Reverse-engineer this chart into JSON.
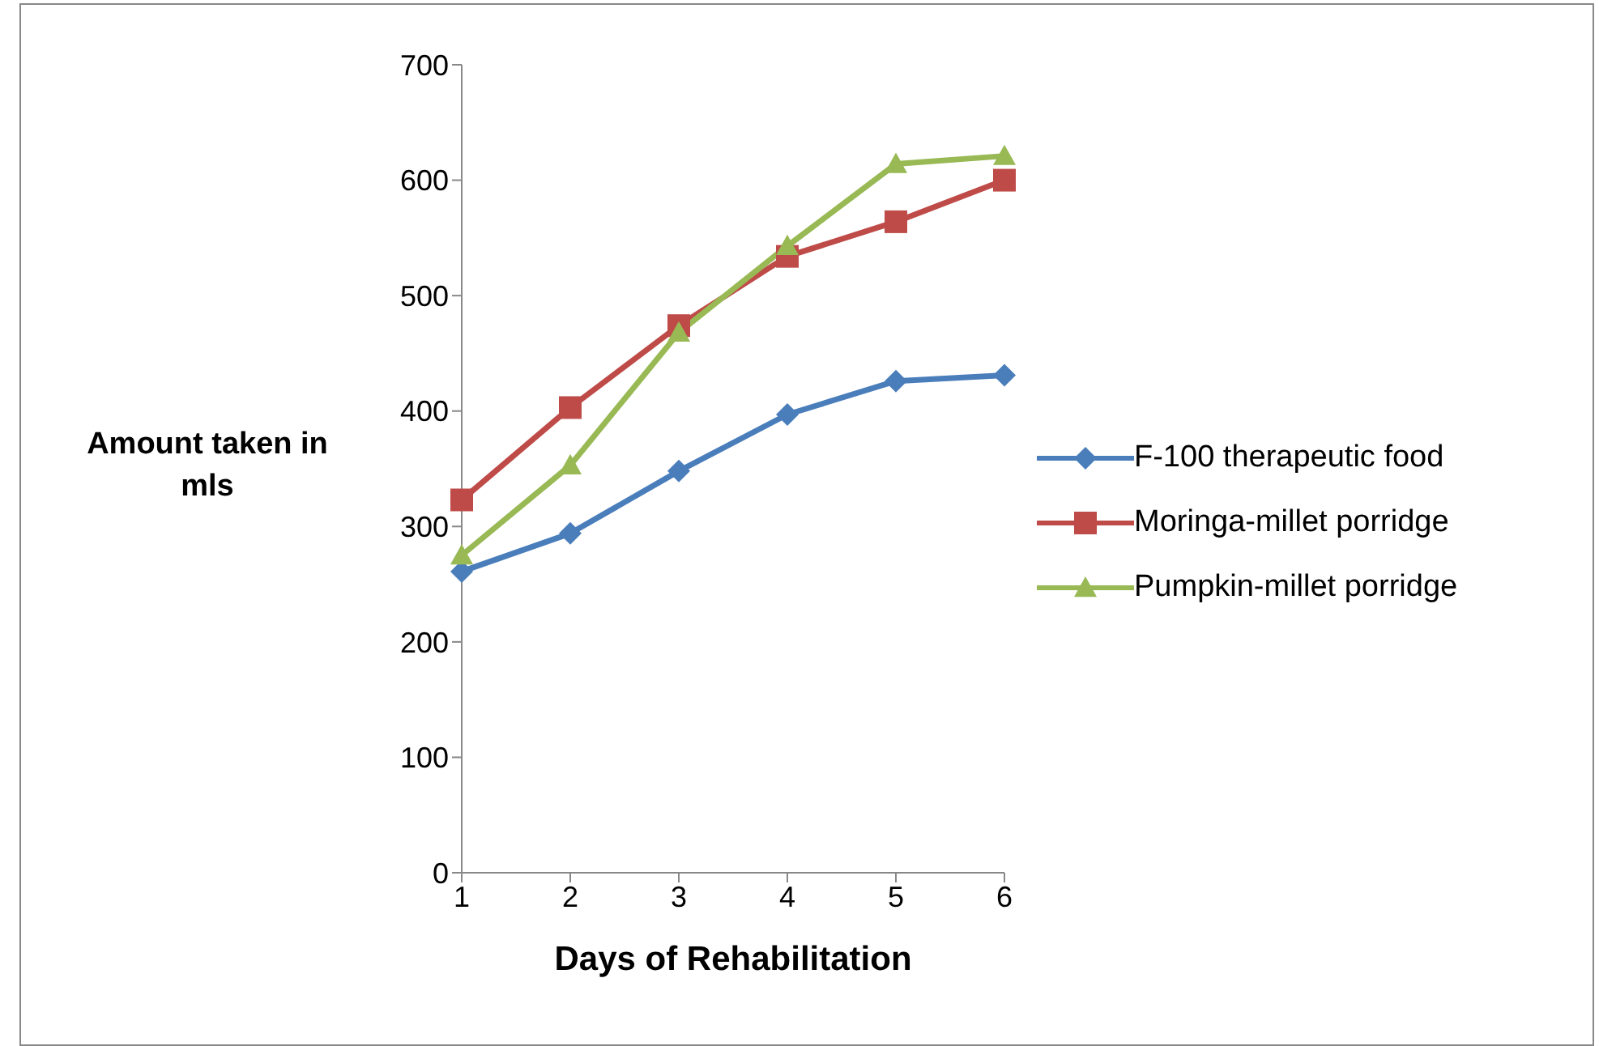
{
  "chart_data": {
    "type": "line",
    "xlabel": "Days of Rehabilitation",
    "ylabel": "Amount taken in mls",
    "categories": [
      "1",
      "2",
      "3",
      "4",
      "5",
      "6"
    ],
    "series": [
      {
        "name": "F-100 therapeutic food",
        "color": "#4a7ebb",
        "marker": "diamond",
        "values": [
          261,
          294,
          348,
          397,
          426,
          431
        ]
      },
      {
        "name": "Moringa-millet porridge",
        "color": "#be4b48",
        "marker": "square",
        "values": [
          323,
          403,
          474,
          534,
          564,
          600
        ]
      },
      {
        "name": "Pumpkin-millet porridge",
        "color": "#98b954",
        "marker": "triangle",
        "values": [
          275,
          353,
          468,
          543,
          614,
          621
        ]
      }
    ],
    "ylim": [
      0,
      700
    ],
    "yticks": [
      0,
      100,
      200,
      300,
      400,
      500,
      600,
      700
    ],
    "grid": false,
    "legend": "right"
  }
}
